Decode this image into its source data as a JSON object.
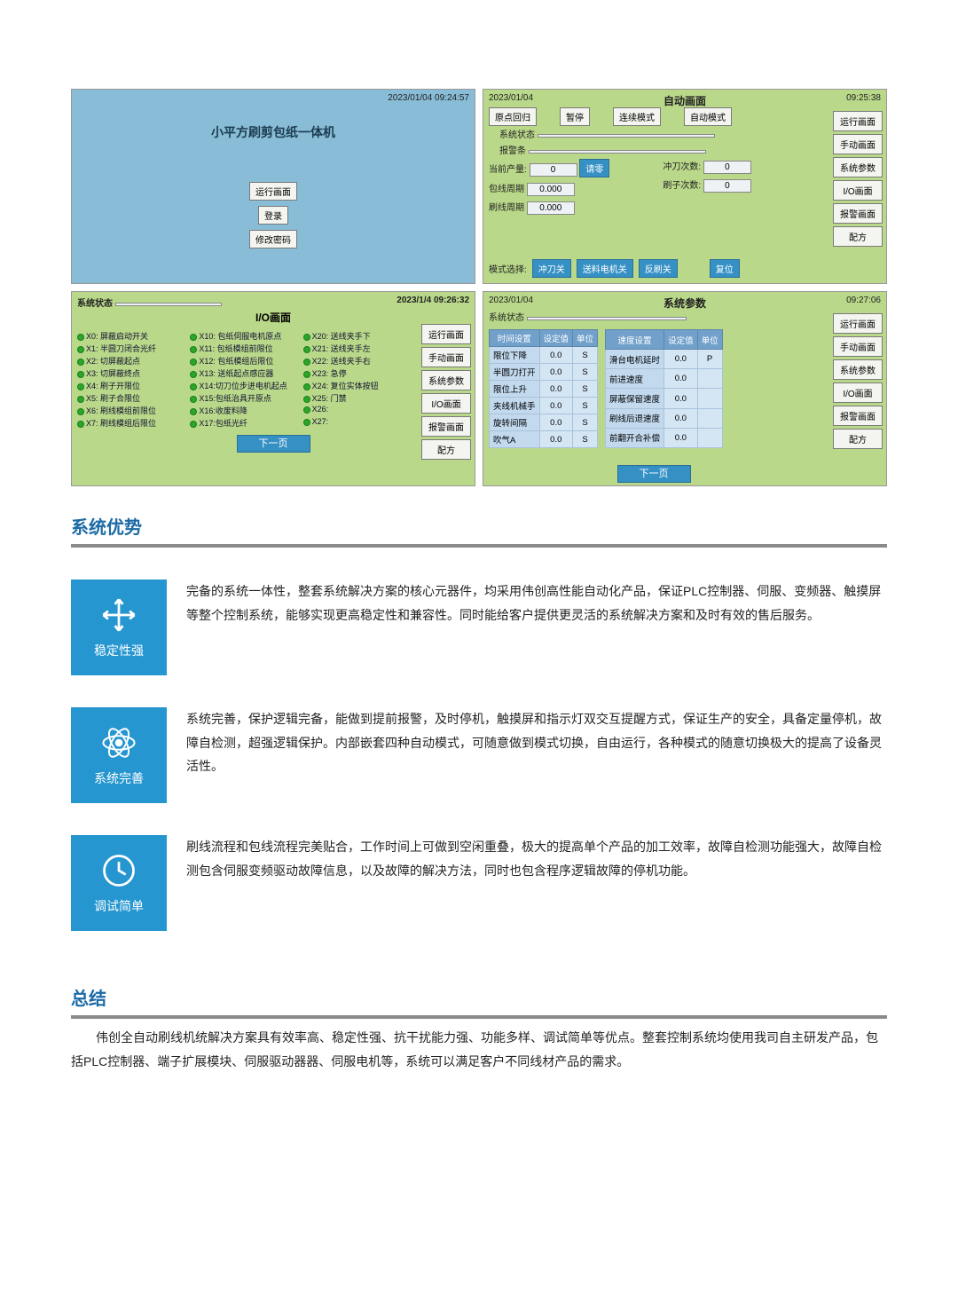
{
  "colors": {
    "accent": "#2596d0",
    "head": "#1c6ba6",
    "rule": "#8a8a8a",
    "pane_blue": "#89bcd6",
    "pane_green": "#b9d889",
    "btn_bg": "#f4f4f0",
    "btn_blue": "#3590c4",
    "io_dot": "#2ba52b"
  },
  "screens": {
    "login": {
      "timestamp": "2023/01/04 09:24:57",
      "title": "小平方刷剪包纸一体机",
      "buttons": [
        "运行画面",
        "登录",
        "修改密码"
      ]
    },
    "auto": {
      "timestamp_left": "2023/01/04",
      "title": "自动画面",
      "timestamp_right": "09:25:38",
      "topbar": [
        "原点回归",
        "暂停",
        "连续模式",
        "自动模式"
      ],
      "status_label": "系统状态",
      "alarm_label": "报警条",
      "fields": {
        "当前产量:": "0",
        "包线周期": "0.000",
        "刷线周期": "0.000",
        "冲刀次数:": "0",
        "刷子次数:": "0"
      },
      "clear_btn": "请零",
      "mode_label": "模式选择:",
      "mode_btns": [
        "冲刀关",
        "送料电机关",
        "反刷关",
        "复位"
      ],
      "nav": [
        "运行画面",
        "手动画面",
        "系统参数",
        "I/O画面",
        "报警画面",
        "配方"
      ]
    },
    "io": {
      "status_label": "系统状态",
      "timestamp": "2023/1/4 09:26:32",
      "title": "I/O画面",
      "items": [
        "X0: 屏蔽启动开关",
        "X10: 包纸伺服电机原点",
        "X20: 送线夹手下",
        "X1: 半圆刀闭合光纤",
        "X11: 包纸模组前限位",
        "X21: 送线夹手左",
        "X2: 切屏蔽起点",
        "X12: 包纸模组后限位",
        "X22: 送线夹手右",
        "X3: 切屏蔽终点",
        "X13: 送纸起点感应器",
        "X23: 急停",
        "X4: 刷子开限位",
        "X14:切刀位步进电机起点",
        "X24: 复位实体按钮",
        "X5: 刷子合限位",
        "X15:包纸治具开原点",
        "X25: 门禁",
        "X6: 刷线模组前限位",
        "X16:收废料降",
        "X26:",
        "X7: 刷线模组后限位",
        "X17:包纸光纤",
        "X27:"
      ],
      "next": "下一页",
      "nav": [
        "运行画面",
        "手动画面",
        "系统参数",
        "I/O画面",
        "报警画面",
        "配方"
      ]
    },
    "params": {
      "timestamp_left": "2023/01/04",
      "title": "系统参数",
      "timestamp_right": "09:27:06",
      "status_label": "系统状态",
      "left_header": [
        "时间设置",
        "设定值",
        "单位"
      ],
      "right_header": [
        "速度设置",
        "设定值",
        "单位"
      ],
      "left_rows": [
        [
          "限位下降",
          "0.0",
          "S"
        ],
        [
          "半圆刀打开",
          "0.0",
          "S"
        ],
        [
          "限位上升",
          "0.0",
          "S"
        ],
        [
          "夹线机械手",
          "0.0",
          "S"
        ],
        [
          "旋转间隔",
          "0.0",
          "S"
        ],
        [
          "吹气A",
          "0.0",
          "S"
        ]
      ],
      "right_rows": [
        [
          "滑台电机延时",
          "0.0",
          "P"
        ],
        [
          "前进速度",
          "0.0",
          ""
        ],
        [
          "屏蔽保留速度",
          "0.0",
          ""
        ],
        [
          "刷线后退速度",
          "0.0",
          ""
        ],
        [
          "前翻开合补偿",
          "0.0",
          ""
        ]
      ],
      "next": "下一页",
      "nav": [
        "运行画面",
        "手动画面",
        "系统参数",
        "I/O画面",
        "报警画面",
        "配方"
      ]
    }
  },
  "adv_head": "系统优势",
  "advantages": [
    {
      "icon": "arrows",
      "title": "稳定性强",
      "text": "完备的系统一体性，整套系统解决方案的核心元器件，均采用伟创高性能自动化产品，保证PLC控制器、伺服、变频器、触摸屏等整个控制系统，能够实现更高稳定性和兼容性。同时能给客户提供更灵活的系统解决方案和及时有效的售后服务。"
    },
    {
      "icon": "atom",
      "title": "系统完善",
      "text": "系统完善，保护逻辑完备，能做到提前报警，及时停机，触摸屏和指示灯双交互提醒方式，保证生产的安全，具备定量停机，故障自检测，超强逻辑保护。内部嵌套四种自动模式，可随意做到模式切换，自由运行，各种模式的随意切换极大的提高了设备灵活性。"
    },
    {
      "icon": "clock",
      "title": "调试简单",
      "text": "刷线流程和包线流程完美贴合，工作时间上可做到空闲重叠，极大的提高单个产品的加工效率，故障自检测功能强大，故障自检测包含伺服变频驱动故障信息，以及故障的解决方法，同时也包含程序逻辑故障的停机功能。"
    }
  ],
  "summary_head": "总结",
  "summary_text": "伟创全自动刷线机统解决方案具有效率高、稳定性强、抗干扰能力强、功能多样、调试简单等优点。整套控制系统均使用我司自主研发产品，包括PLC控制器、端子扩展模块、伺服驱动器器、伺服电机等，系统可以满足客户不同线材产品的需求。"
}
